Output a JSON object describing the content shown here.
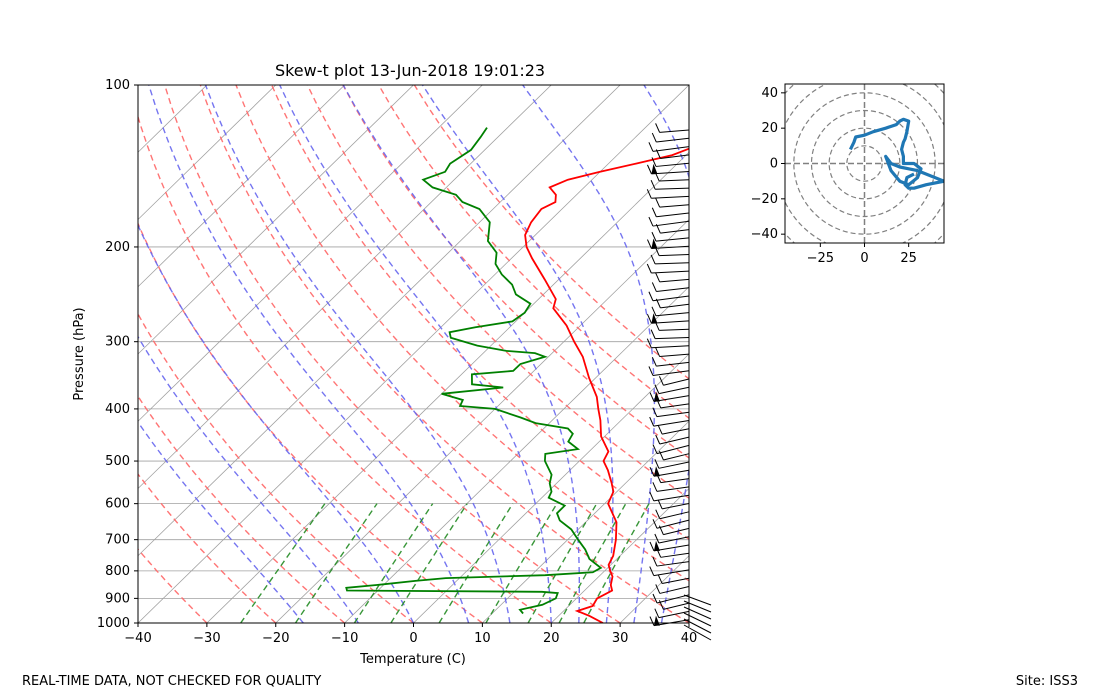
{
  "footer": {
    "quality_note": "REAL-TIME DATA, NOT CHECKED FOR QUALITY",
    "site": "Site: ISS3"
  },
  "colors": {
    "temperature": "#ff0000",
    "dewpoint": "#008000",
    "dry_adiabat": "#ff6666",
    "moist_adiabat": "#6666ee",
    "mixing_ratio": "#228b22",
    "isotherm": "#a0a0a0",
    "hodograph": "#1f77b4"
  },
  "chart_data": [
    {
      "type": "line",
      "title": "Skew-t plot 13-Jun-2018 19:01:23",
      "xlabel": "Temperature (C)",
      "ylabel": "Pressure (hPa)",
      "xlim": [
        -40,
        40
      ],
      "ylim": [
        1000,
        100
      ],
      "yscale": "log",
      "grid": true,
      "x_ticks": [
        -40,
        -30,
        -20,
        -10,
        0,
        10,
        20,
        30,
        40
      ],
      "y_ticks": [
        1000,
        900,
        800,
        700,
        600,
        500,
        400,
        300,
        200,
        100
      ],
      "series": [
        {
          "role": "temperature",
          "points": [
            [
              1000,
              27.5
            ],
            [
              970,
              24.5
            ],
            [
              950,
              22.0
            ],
            [
              930,
              23.5
            ],
            [
              900,
              23.0
            ],
            [
              870,
              24.0
            ],
            [
              850,
              23.0
            ],
            [
              820,
              22.0
            ],
            [
              800,
              20.8
            ],
            [
              780,
              19.7
            ],
            [
              750,
              19.0
            ],
            [
              700,
              17.0
            ],
            [
              650,
              14.5
            ],
            [
              600,
              10.5
            ],
            [
              570,
              9.5
            ],
            [
              550,
              8.0
            ],
            [
              520,
              5.5
            ],
            [
              500,
              3.5
            ],
            [
              480,
              2.8
            ],
            [
              450,
              -0.5
            ],
            [
              420,
              -3.0
            ],
            [
              400,
              -5.0
            ],
            [
              380,
              -7.0
            ],
            [
              350,
              -11.0
            ],
            [
              320,
              -15.0
            ],
            [
              300,
              -18.5
            ],
            [
              280,
              -22.0
            ],
            [
              260,
              -26.5
            ],
            [
              250,
              -27.5
            ],
            [
              230,
              -32.0
            ],
            [
              210,
              -37.0
            ],
            [
              200,
              -39.5
            ],
            [
              190,
              -41.5
            ],
            [
              180,
              -42.5
            ],
            [
              170,
              -43.0
            ],
            [
              165,
              -42.0
            ],
            [
              160,
              -43.0
            ],
            [
              155,
              -45.0
            ],
            [
              150,
              -43.5
            ],
            [
              145,
              -40.0
            ],
            [
              140,
              -36.0
            ],
            [
              135,
              -32.0
            ],
            [
              130,
              -30.0
            ],
            [
              125,
              -30.5
            ],
            [
              120,
              -32.0
            ],
            [
              118,
              -30.0
            ],
            [
              115,
              -33.0
            ]
          ]
        },
        {
          "role": "dewpoint",
          "points": [
            [
              960,
              14.5
            ],
            [
              945,
              13.5
            ],
            [
              925,
              16.0
            ],
            [
              900,
              17.0
            ],
            [
              880,
              16.5
            ],
            [
              875,
              14.0
            ],
            [
              870,
              -14.5
            ],
            [
              860,
              -15.0
            ],
            [
              850,
              -11.0
            ],
            [
              835,
              -6.0
            ],
            [
              825,
              -2.0
            ],
            [
              815,
              12.0
            ],
            [
              805,
              18.5
            ],
            [
              790,
              19.0
            ],
            [
              760,
              16.0
            ],
            [
              730,
              14.0
            ],
            [
              700,
              11.5
            ],
            [
              670,
              9.0
            ],
            [
              645,
              6.0
            ],
            [
              625,
              4.5
            ],
            [
              605,
              4.5
            ],
            [
              585,
              1.0
            ],
            [
              570,
              0.5
            ],
            [
              550,
              -1.0
            ],
            [
              530,
              -2.0
            ],
            [
              500,
              -5.0
            ],
            [
              485,
              -6.0
            ],
            [
              475,
              -2.0
            ],
            [
              460,
              -4.5
            ],
            [
              445,
              -5.0
            ],
            [
              435,
              -6.5
            ],
            [
              425,
              -12.0
            ],
            [
              415,
              -15.0
            ],
            [
              400,
              -20.0
            ],
            [
              395,
              -25.5
            ],
            [
              385,
              -26.0
            ],
            [
              375,
              -30.0
            ],
            [
              365,
              -22.0
            ],
            [
              360,
              -27.0
            ],
            [
              345,
              -28.5
            ],
            [
              340,
              -23.0
            ],
            [
              330,
              -23.0
            ],
            [
              320,
              -20.5
            ],
            [
              315,
              -22.5
            ],
            [
              312,
              -27.0
            ],
            [
              305,
              -32.0
            ],
            [
              295,
              -37.0
            ],
            [
              288,
              -38.0
            ],
            [
              282,
              -35.0
            ],
            [
              275,
              -30.5
            ],
            [
              265,
              -30.0
            ],
            [
              255,
              -30.5
            ],
            [
              245,
              -34.0
            ],
            [
              235,
              -36.0
            ],
            [
              225,
              -39.0
            ],
            [
              215,
              -41.5
            ],
            [
              205,
              -43.0
            ],
            [
              195,
              -46.0
            ],
            [
              180,
              -48.5
            ],
            [
              170,
              -52.0
            ],
            [
              165,
              -55.5
            ],
            [
              160,
              -57.5
            ],
            [
              155,
              -62.0
            ],
            [
              150,
              -64.5
            ],
            [
              145,
              -62.5
            ],
            [
              140,
              -63.0
            ],
            [
              132,
              -62.0
            ],
            [
              125,
              -62.5
            ],
            [
              120,
              -63.0
            ]
          ]
        }
      ]
    },
    {
      "type": "line",
      "title": "",
      "xlim": [
        -45,
        45
      ],
      "ylim": [
        -45,
        45
      ],
      "x_ticks": [
        -25,
        0,
        25
      ],
      "y_ticks": [
        -40,
        -20,
        0,
        20,
        40
      ],
      "rings": [
        10,
        20,
        30,
        40,
        50,
        60
      ],
      "series": [
        {
          "role": "wind",
          "x": [
            -8,
            -6,
            -5,
            0,
            5,
            12,
            18,
            20,
            22,
            25,
            24,
            23,
            22,
            21,
            22,
            22,
            28,
            32,
            30,
            25,
            20,
            15,
            12,
            15,
            20,
            25,
            30,
            45,
            35,
            28,
            25,
            23,
            24,
            28
          ],
          "y": [
            8,
            12,
            15,
            16,
            18,
            20,
            22,
            24,
            25,
            24,
            18,
            14,
            12,
            8,
            4,
            0,
            0,
            -3,
            -8,
            -12,
            -10,
            -4,
            4,
            0,
            -2,
            -3,
            -4,
            -10,
            -12,
            -14,
            -14,
            -12,
            -8,
            -6
          ]
        }
      ]
    }
  ]
}
